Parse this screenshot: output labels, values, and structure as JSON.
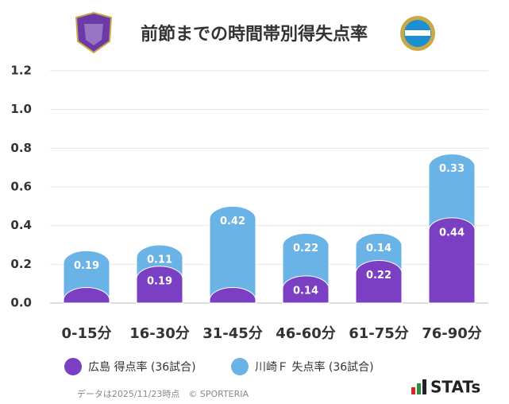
{
  "chart_data": {
    "type": "stacked_bar",
    "title": "前節までの時間帯別得失点率",
    "categories": [
      "0-15分",
      "16-30分",
      "31-45分",
      "46-60分",
      "61-75分",
      "76-90分"
    ],
    "series": [
      {
        "name": "広島 得点率 (36試合)",
        "color": "#7a3fc2",
        "values": [
          0.08,
          0.19,
          0.08,
          0.14,
          0.22,
          0.44
        ],
        "value_labels": [
          null,
          "0.19",
          null,
          "0.14",
          "0.22",
          "0.44"
        ]
      },
      {
        "name": "川崎Ｆ 失点率 (36試合)",
        "color": "#6ab3e6",
        "values": [
          0.19,
          0.11,
          0.42,
          0.22,
          0.14,
          0.33
        ]
      }
    ],
    "ylim": [
      0,
      1.2
    ],
    "yticks": [
      {
        "value": 0,
        "label": "0.0"
      },
      {
        "value": 0.2,
        "label": "0.2"
      },
      {
        "value": 0.4,
        "label": "0.4"
      },
      {
        "value": 0.6,
        "label": "0.6"
      },
      {
        "value": 0.8,
        "label": "0.8"
      },
      {
        "value": 1,
        "label": "1.0"
      },
      {
        "value": 1.2,
        "label": "1.2"
      }
    ],
    "grid": true,
    "footnote": "データは2025/11/23時点　© SPORTERIA",
    "brand": "STATs"
  }
}
